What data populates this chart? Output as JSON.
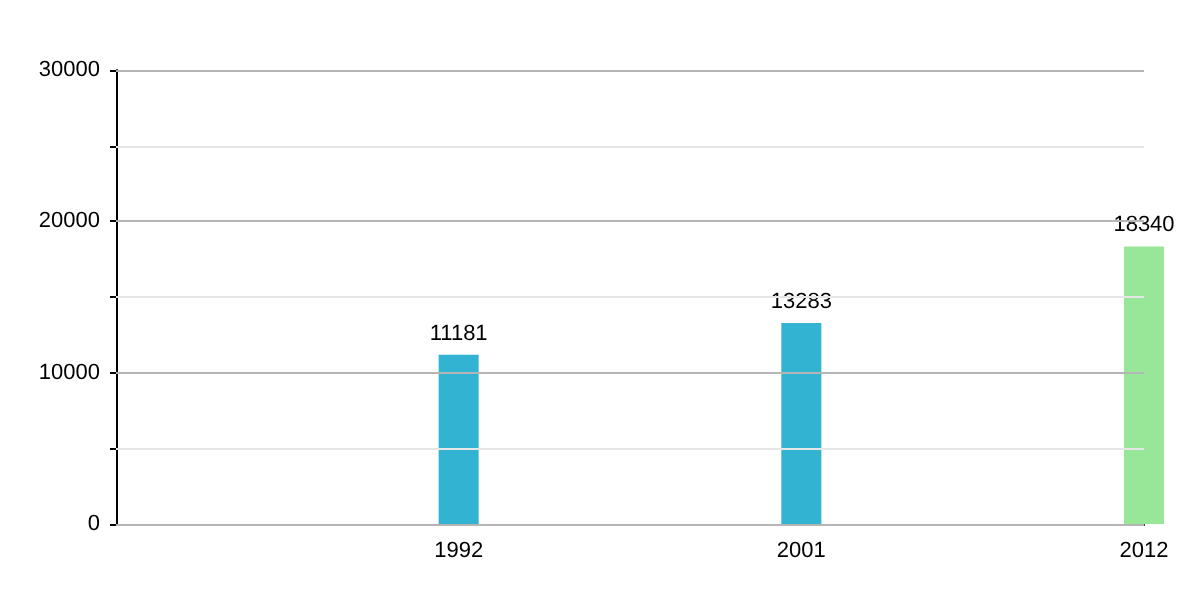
{
  "chart_data": {
    "type": "bar",
    "categories": [
      null,
      "1992",
      "2001",
      "2012"
    ],
    "values": [
      null,
      11181,
      13283,
      18340
    ],
    "colors": [
      "#31b3d1",
      "#31b3d1",
      "#31b3d1",
      "#98e698"
    ],
    "ylim": [
      0,
      30000
    ],
    "yticks": [
      0,
      {
        "value": 5000,
        "label": null
      },
      10000,
      {
        "value": 15000,
        "label": null
      },
      20000,
      {
        "value": 25000,
        "label": null
      },
      30000
    ],
    "grid": "y",
    "data_labels": true
  }
}
